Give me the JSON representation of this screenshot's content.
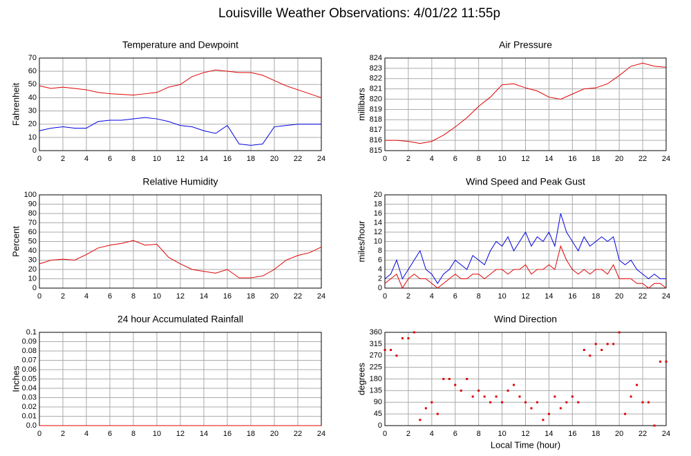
{
  "title": "Louisville Weather Observations: 4/01/22 11:55p",
  "chart_data": [
    {
      "type": "line",
      "title": "Temperature and Dewpoint",
      "ylabel": "Fahrenheit",
      "x": [
        0,
        1,
        2,
        3,
        4,
        5,
        6,
        7,
        8,
        9,
        10,
        11,
        12,
        13,
        14,
        15,
        16,
        17,
        18,
        19,
        20,
        21,
        22,
        23,
        24
      ],
      "series": [
        {
          "name": "Temperature",
          "color": "#e00000",
          "values": [
            49,
            47,
            48,
            47,
            46,
            44,
            43,
            42.5,
            42,
            43,
            44,
            48,
            50,
            56,
            59,
            61,
            60,
            59,
            59,
            57,
            53,
            49,
            46,
            43,
            40
          ]
        },
        {
          "name": "Dewpoint",
          "color": "#0000e0",
          "values": [
            15,
            17,
            18,
            17,
            17,
            22,
            23,
            23,
            24,
            25,
            24,
            22,
            19,
            18,
            15,
            13,
            19,
            5,
            4,
            5,
            18,
            19,
            20,
            20,
            20
          ]
        }
      ],
      "xlim": [
        0,
        24
      ],
      "xticks": [
        0,
        2,
        4,
        6,
        8,
        10,
        12,
        14,
        16,
        18,
        20,
        22,
        24
      ],
      "ylim": [
        0,
        70
      ],
      "yticks": [
        0,
        10,
        20,
        30,
        40,
        50,
        60,
        70
      ],
      "grid": true
    },
    {
      "type": "line",
      "title": "Air Pressure",
      "ylabel": "millibars",
      "x": [
        0,
        1,
        2,
        3,
        4,
        5,
        6,
        7,
        8,
        9,
        10,
        11,
        12,
        13,
        14,
        15,
        16,
        17,
        18,
        19,
        20,
        21,
        22,
        23,
        24
      ],
      "series": [
        {
          "name": "Pressure",
          "color": "#e00000",
          "values": [
            816,
            816,
            815.9,
            815.7,
            815.9,
            816.5,
            817.3,
            818.2,
            819.3,
            820.2,
            821.4,
            821.5,
            821.1,
            820.8,
            820.2,
            820,
            820.5,
            821,
            821.1,
            821.5,
            822.3,
            823.2,
            823.5,
            823.2,
            823.1
          ]
        }
      ],
      "xlim": [
        0,
        24
      ],
      "xticks": [
        0,
        2,
        4,
        6,
        8,
        10,
        12,
        14,
        16,
        18,
        20,
        22,
        24
      ],
      "ylim": [
        815,
        824
      ],
      "yticks": [
        815,
        816,
        817,
        818,
        819,
        820,
        821,
        822,
        823,
        824
      ],
      "grid": true
    },
    {
      "type": "line",
      "title": "Relative Humidity",
      "ylabel": "Percent",
      "x": [
        0,
        1,
        2,
        3,
        4,
        5,
        6,
        7,
        8,
        9,
        10,
        11,
        12,
        13,
        14,
        15,
        16,
        17,
        18,
        19,
        20,
        21,
        22,
        23,
        24
      ],
      "series": [
        {
          "name": "Humidity",
          "color": "#e00000",
          "values": [
            26,
            30,
            31,
            30,
            36,
            43,
            46,
            48,
            51,
            46,
            47,
            33,
            26,
            20,
            18,
            16,
            20,
            11,
            11,
            13,
            20,
            30,
            35,
            38,
            44
          ]
        }
      ],
      "xlim": [
        0,
        24
      ],
      "xticks": [
        0,
        2,
        4,
        6,
        8,
        10,
        12,
        14,
        16,
        18,
        20,
        22,
        24
      ],
      "ylim": [
        0,
        100
      ],
      "yticks": [
        0,
        10,
        20,
        30,
        40,
        50,
        60,
        70,
        80,
        90,
        100
      ],
      "grid": true
    },
    {
      "type": "line",
      "title": "Wind Speed and Peak Gust",
      "ylabel": "miles/hour",
      "x": [
        0,
        0.5,
        1,
        1.5,
        2,
        2.5,
        3,
        3.5,
        4,
        4.5,
        5,
        5.5,
        6,
        6.5,
        7,
        7.5,
        8,
        8.5,
        9,
        9.5,
        10,
        10.5,
        11,
        11.5,
        12,
        12.5,
        13,
        13.5,
        14,
        14.5,
        15,
        15.5,
        16,
        16.5,
        17,
        17.5,
        18,
        18.5,
        19,
        19.5,
        20,
        20.5,
        21,
        21.5,
        22,
        22.5,
        23,
        23.5,
        24
      ],
      "series": [
        {
          "name": "Peak Gust",
          "color": "#0000e0",
          "values": [
            2,
            3,
            6,
            2,
            4,
            6,
            8,
            4,
            3,
            1,
            3,
            4,
            6,
            5,
            4,
            7,
            6,
            5,
            8,
            10,
            9,
            11,
            8,
            10,
            12,
            9,
            11,
            10,
            12,
            9,
            16,
            12,
            10,
            8,
            11,
            9,
            10,
            11,
            10,
            11,
            6,
            5,
            6,
            4,
            3,
            2,
            3,
            2,
            2
          ]
        },
        {
          "name": "Wind Speed",
          "color": "#e00000",
          "values": [
            1,
            2,
            3,
            0,
            2,
            3,
            2,
            2,
            1,
            0,
            1,
            2,
            3,
            2,
            2,
            3,
            3,
            2,
            3,
            4,
            4,
            3,
            4,
            4,
            5,
            3,
            4,
            4,
            5,
            4,
            9,
            6,
            4,
            3,
            4,
            3,
            4,
            4,
            3,
            5,
            2,
            2,
            2,
            1,
            1,
            0,
            1,
            1,
            0
          ]
        }
      ],
      "xlim": [
        0,
        24
      ],
      "xticks": [
        0,
        2,
        4,
        6,
        8,
        10,
        12,
        14,
        16,
        18,
        20,
        22,
        24
      ],
      "ylim": [
        0,
        20
      ],
      "yticks": [
        0,
        2,
        4,
        6,
        8,
        10,
        12,
        14,
        16,
        18,
        20
      ],
      "grid": true
    },
    {
      "type": "line",
      "title": "24 hour Accumulated Rainfall",
      "ylabel": "Inches",
      "x": [
        0,
        24
      ],
      "series": [
        {
          "name": "Rainfall",
          "color": "#e00000",
          "values": [
            0,
            0
          ]
        }
      ],
      "xlim": [
        0,
        24
      ],
      "xticks": [
        0,
        2,
        4,
        6,
        8,
        10,
        12,
        14,
        16,
        18,
        20,
        22,
        24
      ],
      "ylim": [
        0,
        0.1
      ],
      "yticks": [
        {
          "value": 0,
          "label": "0.0"
        },
        0.01,
        0.02,
        0.03,
        0.04,
        0.05,
        0.06,
        0.07,
        0.08,
        0.09,
        0.1
      ],
      "grid": true
    },
    {
      "type": "scatter",
      "title": "Wind Direction",
      "ylabel": "degrees",
      "xlabel": "Local Time (hour)",
      "x": [
        0,
        0.5,
        1,
        1.5,
        2,
        2.5,
        3,
        3.5,
        4,
        4.5,
        5,
        5.5,
        6,
        6.5,
        7,
        7.5,
        8,
        8.5,
        9,
        9.5,
        10,
        10.5,
        11,
        11.5,
        12,
        12.5,
        13,
        13.5,
        14,
        14.5,
        15,
        15.5,
        16,
        16.5,
        17,
        17.5,
        18,
        18.5,
        19,
        19.5,
        20,
        20.5,
        21,
        21.5,
        22,
        22.5,
        23,
        23.5,
        24
      ],
      "series": [
        {
          "name": "Direction",
          "color": "#e00000",
          "values": [
            292,
            292,
            270,
            337,
            337,
            360,
            22,
            67,
            90,
            45,
            180,
            180,
            157,
            135,
            180,
            112,
            135,
            112,
            90,
            112,
            90,
            135,
            157,
            112,
            90,
            67,
            90,
            22,
            45,
            112,
            67,
            90,
            112,
            90,
            292,
            270,
            315,
            292,
            315,
            315,
            360,
            45,
            112,
            157,
            90,
            90,
            0,
            247,
            247
          ]
        }
      ],
      "xlim": [
        0,
        24
      ],
      "xticks": [
        0,
        2,
        4,
        6,
        8,
        10,
        12,
        14,
        16,
        18,
        20,
        22,
        24
      ],
      "ylim": [
        0,
        360
      ],
      "yticks": [
        0,
        45,
        90,
        135,
        180,
        225,
        270,
        315,
        360
      ],
      "grid": true
    }
  ]
}
